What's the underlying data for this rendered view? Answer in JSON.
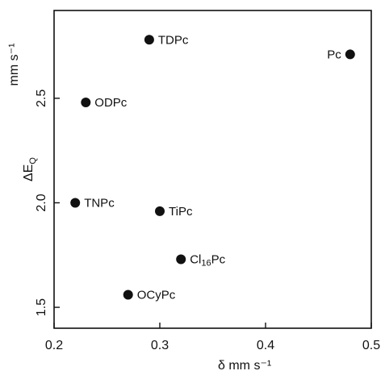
{
  "chart_data": {
    "type": "scatter",
    "title": "",
    "xlabel": "δ    mm s⁻¹",
    "ylabel_symbol": "ΔE",
    "ylabel_sub": "Q",
    "ylabel_unit": "mm s⁻¹",
    "xlim": [
      0.2,
      0.5
    ],
    "ylim": [
      1.4,
      2.92
    ],
    "x_ticks": [
      0.2,
      0.3,
      0.4,
      0.5
    ],
    "x_tick_labels": [
      "0.2",
      "0.3",
      "0.4",
      "0.5"
    ],
    "y_ticks": [
      1.5,
      2.0,
      2.5
    ],
    "y_tick_labels": [
      "1.5",
      "2.0",
      "2.5"
    ],
    "grid": false,
    "marker_color": "#111111",
    "points": [
      {
        "label": "TDPc",
        "x": 0.29,
        "y": 2.78
      },
      {
        "label": "Pc",
        "x": 0.48,
        "y": 2.71
      },
      {
        "label": "ODPc",
        "x": 0.23,
        "y": 2.48
      },
      {
        "label": "TNPc",
        "x": 0.22,
        "y": 2.0
      },
      {
        "label": "TiPc",
        "x": 0.3,
        "y": 1.96
      },
      {
        "label": "Cl",
        "label_sub": "16",
        "label_suffix": "Pc",
        "x": 0.32,
        "y": 1.73
      },
      {
        "label": "OCyPc",
        "x": 0.27,
        "y": 1.56
      }
    ]
  }
}
